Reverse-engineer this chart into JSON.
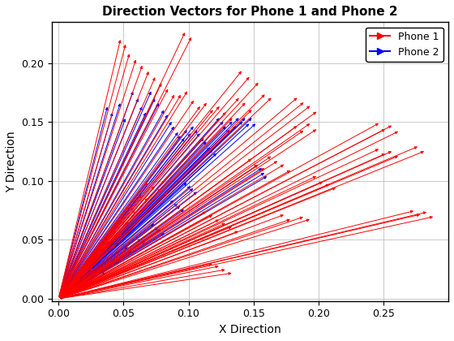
{
  "title": "Direction Vectors for Phone 1 and Phone 2",
  "xlabel": "X Direction",
  "ylabel": "Y Direction",
  "xlim": [
    -0.005,
    0.3
  ],
  "ylim": [
    -0.002,
    0.235
  ],
  "phone1_color": "#FF0000",
  "phone2_color": "#0000FF",
  "legend_phone1": "Phone 1",
  "legend_phone2": "Phone 2",
  "xticks": [
    0,
    0.05,
    0.1,
    0.15,
    0.2,
    0.25
  ],
  "yticks": [
    0,
    0.05,
    0.1,
    0.15,
    0.2
  ],
  "phone1_vectors": [
    [
      0.048,
      0.222
    ],
    [
      0.052,
      0.218
    ],
    [
      0.098,
      0.228
    ],
    [
      0.103,
      0.224
    ],
    [
      0.055,
      0.21
    ],
    [
      0.06,
      0.205
    ],
    [
      0.065,
      0.2
    ],
    [
      0.07,
      0.195
    ],
    [
      0.075,
      0.19
    ],
    [
      0.08,
      0.185
    ],
    [
      0.085,
      0.18
    ],
    [
      0.09,
      0.175
    ],
    [
      0.095,
      0.175
    ],
    [
      0.1,
      0.178
    ],
    [
      0.105,
      0.17
    ],
    [
      0.11,
      0.165
    ],
    [
      0.115,
      0.168
    ],
    [
      0.12,
      0.162
    ],
    [
      0.125,
      0.165
    ],
    [
      0.13,
      0.16
    ],
    [
      0.135,
      0.155
    ],
    [
      0.14,
      0.172
    ],
    [
      0.145,
      0.168
    ],
    [
      0.15,
      0.162
    ],
    [
      0.142,
      0.195
    ],
    [
      0.148,
      0.19
    ],
    [
      0.155,
      0.185
    ],
    [
      0.16,
      0.175
    ],
    [
      0.165,
      0.172
    ],
    [
      0.15,
      0.12
    ],
    [
      0.155,
      0.115
    ],
    [
      0.16,
      0.112
    ],
    [
      0.165,
      0.122
    ],
    [
      0.17,
      0.118
    ],
    [
      0.175,
      0.115
    ],
    [
      0.18,
      0.11
    ],
    [
      0.185,
      0.148
    ],
    [
      0.19,
      0.144
    ],
    [
      0.195,
      0.15
    ],
    [
      0.2,
      0.145
    ],
    [
      0.185,
      0.172
    ],
    [
      0.19,
      0.168
    ],
    [
      0.195,
      0.165
    ],
    [
      0.2,
      0.16
    ],
    [
      0.115,
      0.075
    ],
    [
      0.12,
      0.072
    ],
    [
      0.125,
      0.068
    ],
    [
      0.13,
      0.065
    ],
    [
      0.135,
      0.062
    ],
    [
      0.14,
      0.058
    ],
    [
      0.12,
      0.03
    ],
    [
      0.125,
      0.028
    ],
    [
      0.13,
      0.025
    ],
    [
      0.135,
      0.022
    ],
    [
      0.175,
      0.072
    ],
    [
      0.18,
      0.068
    ],
    [
      0.19,
      0.07
    ],
    [
      0.195,
      0.068
    ],
    [
      0.2,
      0.105
    ],
    [
      0.205,
      0.1
    ],
    [
      0.21,
      0.098
    ],
    [
      0.215,
      0.095
    ],
    [
      0.248,
      0.15
    ],
    [
      0.253,
      0.145
    ],
    [
      0.258,
      0.148
    ],
    [
      0.263,
      0.143
    ],
    [
      0.248,
      0.128
    ],
    [
      0.253,
      0.124
    ],
    [
      0.258,
      0.126
    ],
    [
      0.263,
      0.122
    ],
    [
      0.278,
      0.13
    ],
    [
      0.283,
      0.126
    ],
    [
      0.275,
      0.075
    ],
    [
      0.28,
      0.072
    ],
    [
      0.285,
      0.074
    ],
    [
      0.29,
      0.07
    ],
    [
      0.07,
      0.1
    ],
    [
      0.075,
      0.097
    ],
    [
      0.08,
      0.095
    ],
    [
      0.085,
      0.092
    ],
    [
      0.065,
      0.09
    ],
    [
      0.07,
      0.087
    ],
    [
      0.055,
      0.08
    ],
    [
      0.06,
      0.077
    ],
    [
      0.05,
      0.07
    ],
    [
      0.055,
      0.067
    ],
    [
      0.045,
      0.06
    ],
    [
      0.05,
      0.057
    ],
    [
      0.04,
      0.05
    ],
    [
      0.045,
      0.047
    ],
    [
      0.03,
      0.04
    ],
    [
      0.035,
      0.037
    ],
    [
      0.025,
      0.03
    ],
    [
      0.028,
      0.027
    ],
    [
      0.018,
      0.018
    ],
    [
      0.022,
      0.015
    ]
  ],
  "phone2_vectors": [
    [
      0.038,
      0.165
    ],
    [
      0.042,
      0.16
    ],
    [
      0.048,
      0.168
    ],
    [
      0.052,
      0.155
    ],
    [
      0.058,
      0.178
    ],
    [
      0.062,
      0.172
    ],
    [
      0.065,
      0.165
    ],
    [
      0.068,
      0.16
    ],
    [
      0.072,
      0.178
    ],
    [
      0.075,
      0.172
    ],
    [
      0.078,
      0.168
    ],
    [
      0.082,
      0.162
    ],
    [
      0.085,
      0.158
    ],
    [
      0.088,
      0.152
    ],
    [
      0.09,
      0.148
    ],
    [
      0.093,
      0.143
    ],
    [
      0.095,
      0.14
    ],
    [
      0.098,
      0.138
    ],
    [
      0.1,
      0.145
    ],
    [
      0.103,
      0.142
    ],
    [
      0.105,
      0.148
    ],
    [
      0.108,
      0.145
    ],
    [
      0.11,
      0.142
    ],
    [
      0.113,
      0.138
    ],
    [
      0.115,
      0.135
    ],
    [
      0.118,
      0.13
    ],
    [
      0.12,
      0.128
    ],
    [
      0.123,
      0.125
    ],
    [
      0.125,
      0.155
    ],
    [
      0.128,
      0.152
    ],
    [
      0.13,
      0.148
    ],
    [
      0.133,
      0.145
    ],
    [
      0.135,
      0.152
    ],
    [
      0.138,
      0.148
    ],
    [
      0.14,
      0.155
    ],
    [
      0.143,
      0.152
    ],
    [
      0.145,
      0.155
    ],
    [
      0.148,
      0.15
    ],
    [
      0.15,
      0.155
    ],
    [
      0.153,
      0.15
    ],
    [
      0.155,
      0.115
    ],
    [
      0.158,
      0.112
    ],
    [
      0.16,
      0.108
    ],
    [
      0.162,
      0.105
    ],
    [
      0.1,
      0.1
    ],
    [
      0.103,
      0.097
    ],
    [
      0.105,
      0.095
    ],
    [
      0.108,
      0.092
    ],
    [
      0.09,
      0.085
    ],
    [
      0.093,
      0.082
    ],
    [
      0.095,
      0.08
    ],
    [
      0.098,
      0.077
    ],
    [
      0.075,
      0.065
    ],
    [
      0.078,
      0.062
    ],
    [
      0.08,
      0.06
    ],
    [
      0.083,
      0.057
    ],
    [
      0.065,
      0.052
    ],
    [
      0.068,
      0.05
    ],
    [
      0.055,
      0.045
    ],
    [
      0.058,
      0.042
    ],
    [
      0.045,
      0.035
    ],
    [
      0.048,
      0.033
    ],
    [
      0.035,
      0.025
    ],
    [
      0.038,
      0.023
    ],
    [
      0.025,
      0.018
    ],
    [
      0.028,
      0.016
    ],
    [
      0.018,
      0.012
    ],
    [
      0.02,
      0.01
    ],
    [
      0.012,
      0.008
    ],
    [
      0.014,
      0.007
    ],
    [
      0.008,
      0.005
    ],
    [
      0.01,
      0.004
    ],
    [
      0.005,
      0.003
    ],
    [
      0.006,
      0.002
    ]
  ]
}
